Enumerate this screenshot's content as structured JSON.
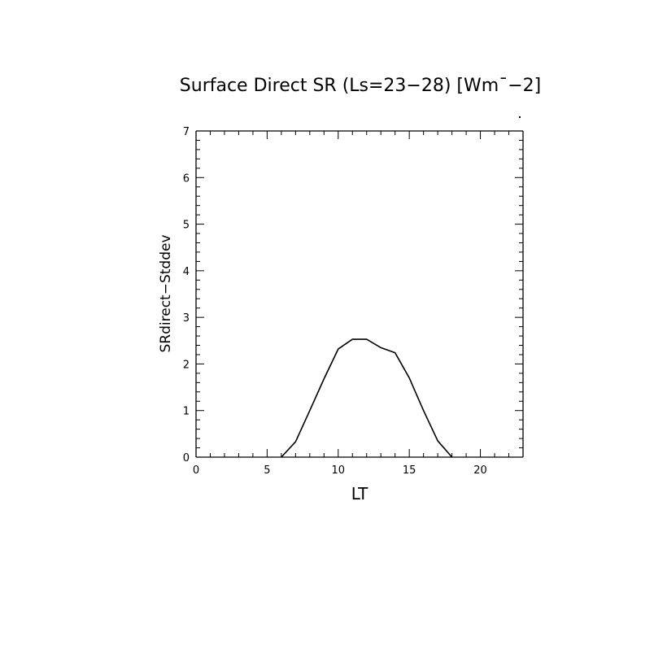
{
  "chart_data": {
    "type": "line",
    "title": "Surface Direct SR (Ls=23−28) [Wm¯−2]",
    "xlabel": "LT",
    "ylabel": "SRdirect−Stddev",
    "xlim": [
      0,
      23
    ],
    "ylim": [
      0,
      7
    ],
    "xticks": [
      0,
      5,
      10,
      15,
      20
    ],
    "yticks": [
      0,
      1,
      2,
      3,
      4,
      5,
      6,
      7
    ],
    "grid": false,
    "series": [
      {
        "x": [
          6,
          7,
          8,
          9,
          10,
          11,
          12,
          13,
          14,
          15,
          16,
          17,
          18
        ],
        "y": [
          0,
          0.33,
          1.0,
          1.68,
          2.32,
          2.53,
          2.53,
          2.35,
          2.24,
          1.7,
          1.0,
          0.35,
          0
        ]
      }
    ]
  }
}
